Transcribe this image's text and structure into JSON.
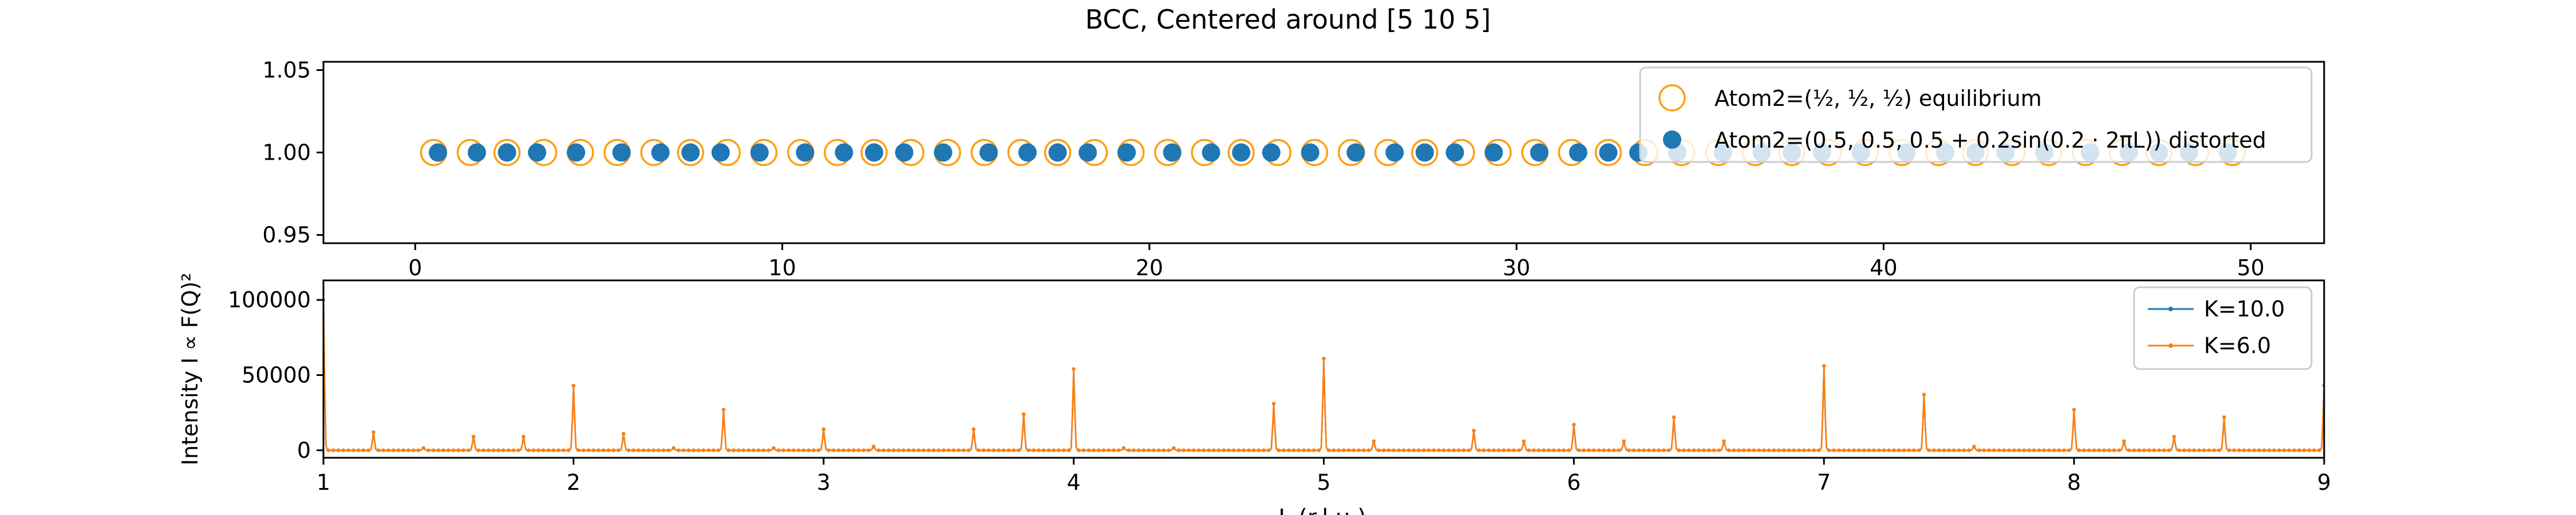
{
  "figure": {
    "title": "BCC, Centered around [5 10 5]"
  },
  "colors": {
    "equilibrium": "#ff9f10",
    "distorted": "#1f77b4",
    "k10": "#1f77b4",
    "k6": "#ff7f0e"
  },
  "chart_data": [
    {
      "type": "scatter",
      "title": "",
      "xlabel": "",
      "ylabel": "",
      "xlim": [
        -2.5,
        52.0
      ],
      "ylim": [
        0.945,
        1.055
      ],
      "xticks": [
        0,
        10,
        20,
        30,
        40,
        50
      ],
      "yticks": [
        0.95,
        1.0,
        1.05
      ],
      "ytick_labels": [
        "0.95",
        "1.00",
        "1.05"
      ],
      "grid": false,
      "legend_position": "top-right",
      "series": [
        {
          "name": "Atom2=(½, ½, ½) equilibrium",
          "marker": "open-circle",
          "x": [
            0.5,
            1.5,
            2.5,
            3.5,
            4.5,
            5.5,
            6.5,
            7.5,
            8.5,
            9.5,
            10.5,
            11.5,
            12.5,
            13.5,
            14.5,
            15.5,
            16.5,
            17.5,
            18.5,
            19.5,
            20.5,
            21.5,
            22.5,
            23.5,
            24.5,
            25.5,
            26.5,
            27.5,
            28.5,
            29.5,
            30.5,
            31.5,
            32.5,
            33.5,
            34.5,
            35.5,
            36.5,
            37.5,
            38.5,
            39.5,
            40.5,
            41.5,
            42.5,
            43.5,
            44.5,
            45.5,
            46.5,
            47.5,
            48.5,
            49.5
          ],
          "y": [
            1.0,
            1.0,
            1.0,
            1.0,
            1.0,
            1.0,
            1.0,
            1.0,
            1.0,
            1.0,
            1.0,
            1.0,
            1.0,
            1.0,
            1.0,
            1.0,
            1.0,
            1.0,
            1.0,
            1.0,
            1.0,
            1.0,
            1.0,
            1.0,
            1.0,
            1.0,
            1.0,
            1.0,
            1.0,
            1.0,
            1.0,
            1.0,
            1.0,
            1.0,
            1.0,
            1.0,
            1.0,
            1.0,
            1.0,
            1.0,
            1.0,
            1.0,
            1.0,
            1.0,
            1.0,
            1.0,
            1.0,
            1.0,
            1.0,
            1.0
          ]
        },
        {
          "name": "Atom2=(0.5, 0.5, 0.5 + 0.2sin(0.2 · 2πL)) distorted",
          "marker": "filled-circle",
          "x": [
            0.62,
            1.68,
            2.5,
            3.32,
            4.38,
            5.62,
            6.68,
            7.5,
            8.32,
            9.38,
            10.62,
            11.68,
            12.5,
            13.32,
            14.38,
            15.62,
            16.68,
            17.5,
            18.32,
            19.38,
            20.62,
            21.68,
            22.5,
            23.32,
            24.38,
            25.62,
            26.68,
            27.5,
            28.32,
            29.38,
            30.62,
            31.68,
            32.5,
            33.32,
            34.38,
            35.62,
            36.68,
            37.5,
            38.32,
            39.38,
            40.62,
            41.68,
            42.5,
            43.32,
            44.38,
            45.62,
            46.68,
            47.5,
            48.32,
            49.38
          ],
          "y": [
            1.0,
            1.0,
            1.0,
            1.0,
            1.0,
            1.0,
            1.0,
            1.0,
            1.0,
            1.0,
            1.0,
            1.0,
            1.0,
            1.0,
            1.0,
            1.0,
            1.0,
            1.0,
            1.0,
            1.0,
            1.0,
            1.0,
            1.0,
            1.0,
            1.0,
            1.0,
            1.0,
            1.0,
            1.0,
            1.0,
            1.0,
            1.0,
            1.0,
            1.0,
            1.0,
            1.0,
            1.0,
            1.0,
            1.0,
            1.0,
            1.0,
            1.0,
            1.0,
            1.0,
            1.0,
            1.0,
            1.0,
            1.0,
            1.0,
            1.0
          ]
        }
      ]
    },
    {
      "type": "line",
      "title": "",
      "xlabel": "L (r.l.u.)",
      "ylabel": "Intensity I ∝ F(Q)²",
      "xlim": [
        1,
        9
      ],
      "ylim": [
        -5000,
        113000
      ],
      "xticks": [
        1,
        2,
        3,
        4,
        5,
        6,
        7,
        8,
        9
      ],
      "yticks": [
        0,
        50000,
        100000
      ],
      "ytick_labels": [
        "0",
        "50000",
        "100000"
      ],
      "grid": false,
      "legend_position": "top-right",
      "series": [
        {
          "name": "K=10.0",
          "peaks": [
            [
              1.0,
              100000
            ],
            [
              1.2,
              12000
            ],
            [
              1.4,
              1500
            ],
            [
              1.6,
              9000
            ],
            [
              1.8,
              9000
            ],
            [
              2.0,
              43000
            ],
            [
              2.2,
              11000
            ],
            [
              2.4,
              1500
            ],
            [
              2.6,
              27000
            ],
            [
              2.8,
              1500
            ],
            [
              3.0,
              14000
            ],
            [
              3.2,
              2500
            ],
            [
              3.6,
              14000
            ],
            [
              3.8,
              24000
            ],
            [
              4.0,
              54000
            ],
            [
              4.2,
              1500
            ],
            [
              4.4,
              1500
            ],
            [
              4.8,
              31000
            ],
            [
              5.0,
              61000
            ],
            [
              5.2,
              6000
            ],
            [
              5.6,
              13000
            ],
            [
              5.8,
              6000
            ],
            [
              6.0,
              17000
            ],
            [
              6.2,
              6000
            ],
            [
              6.4,
              22000
            ],
            [
              6.6,
              6000
            ],
            [
              7.0,
              56000
            ],
            [
              7.4,
              37000
            ],
            [
              7.6,
              2500
            ],
            [
              8.0,
              27000
            ],
            [
              8.2,
              6000
            ],
            [
              8.4,
              9000
            ],
            [
              8.6,
              22000
            ],
            [
              9.0,
              43000
            ]
          ]
        },
        {
          "name": "K=6.0",
          "peaks": [
            [
              1.0,
              100000
            ],
            [
              1.2,
              12000
            ],
            [
              1.4,
              1500
            ],
            [
              1.6,
              9000
            ],
            [
              1.8,
              9000
            ],
            [
              2.0,
              43000
            ],
            [
              2.2,
              11000
            ],
            [
              2.4,
              1500
            ],
            [
              2.6,
              27000
            ],
            [
              2.8,
              1500
            ],
            [
              3.0,
              14000
            ],
            [
              3.2,
              2500
            ],
            [
              3.6,
              14000
            ],
            [
              3.8,
              24000
            ],
            [
              4.0,
              54000
            ],
            [
              4.2,
              1500
            ],
            [
              4.4,
              1500
            ],
            [
              4.8,
              31000
            ],
            [
              5.0,
              61000
            ],
            [
              5.2,
              6000
            ],
            [
              5.6,
              13000
            ],
            [
              5.8,
              6000
            ],
            [
              6.0,
              17000
            ],
            [
              6.2,
              6000
            ],
            [
              6.4,
              22000
            ],
            [
              6.6,
              6000
            ],
            [
              7.0,
              56000
            ],
            [
              7.4,
              37000
            ],
            [
              7.6,
              2500
            ],
            [
              8.0,
              27000
            ],
            [
              8.2,
              6000
            ],
            [
              8.4,
              9000
            ],
            [
              8.6,
              22000
            ],
            [
              9.0,
              43000
            ]
          ]
        }
      ]
    }
  ]
}
